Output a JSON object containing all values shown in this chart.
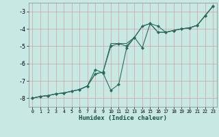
{
  "xlabel": "Humidex (Indice chaleur)",
  "bg_color": "#c8e8e4",
  "grid_color": "#b0d8d4",
  "line_color": "#2a6b5e",
  "xlim": [
    -0.5,
    23.5
  ],
  "ylim": [
    -8.5,
    -2.5
  ],
  "yticks": [
    -8,
    -7,
    -6,
    -5,
    -4,
    -3
  ],
  "xticks": [
    0,
    1,
    2,
    3,
    4,
    5,
    6,
    7,
    8,
    9,
    10,
    11,
    12,
    13,
    14,
    15,
    16,
    17,
    18,
    19,
    20,
    21,
    22,
    23
  ],
  "line1_x": [
    0,
    1,
    2,
    3,
    4,
    5,
    6,
    7,
    8,
    9,
    10,
    11,
    12,
    13,
    14,
    15,
    16,
    17,
    18,
    19,
    20,
    21,
    22,
    23
  ],
  "line1_y": [
    -8.0,
    -7.9,
    -7.85,
    -7.75,
    -7.7,
    -7.6,
    -7.5,
    -7.3,
    -6.35,
    -6.55,
    -7.55,
    -7.2,
    -5.1,
    -4.5,
    -5.1,
    -3.7,
    -3.85,
    -4.2,
    -4.1,
    -4.0,
    -3.95,
    -3.8,
    -3.25,
    -2.7
  ],
  "line2_x": [
    0,
    1,
    2,
    3,
    4,
    5,
    6,
    7,
    8,
    9,
    10,
    11,
    12,
    13,
    14,
    15,
    16,
    17,
    18,
    19,
    20,
    21,
    22,
    23
  ],
  "line2_y": [
    -8.0,
    -7.9,
    -7.85,
    -7.75,
    -7.7,
    -7.6,
    -7.5,
    -7.3,
    -6.6,
    -6.5,
    -5.0,
    -4.85,
    -5.0,
    -4.5,
    -3.85,
    -3.7,
    -4.2,
    -4.2,
    -4.1,
    -4.0,
    -3.95,
    -3.8,
    -3.25,
    -2.7
  ],
  "line3_x": [
    0,
    1,
    2,
    3,
    4,
    5,
    6,
    7,
    8,
    9,
    10,
    11,
    12,
    13,
    14,
    15,
    16,
    17,
    18,
    19,
    20,
    21,
    22,
    23
  ],
  "line3_y": [
    -8.0,
    -7.9,
    -7.85,
    -7.75,
    -7.7,
    -7.6,
    -7.5,
    -7.3,
    -6.6,
    -6.5,
    -4.85,
    -4.85,
    -4.85,
    -4.5,
    -3.85,
    -3.7,
    -4.2,
    -4.2,
    -4.1,
    -4.0,
    -3.95,
    -3.8,
    -3.25,
    -2.7
  ]
}
